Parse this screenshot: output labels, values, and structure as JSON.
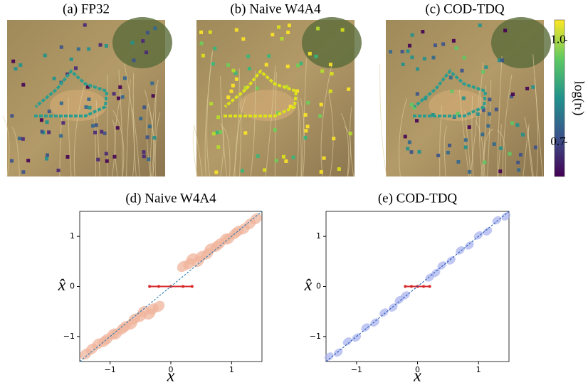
{
  "panels": [
    {
      "title": "(a) FP32"
    },
    {
      "title": "(b) Naive W4A4"
    },
    {
      "title": "(c) COD-TDQ"
    }
  ],
  "colorbar": {
    "label": "log(rₜ)",
    "clim": [
      0.6,
      1.06
    ],
    "cticks": [
      {
        "value": 1.0,
        "label": "1.0"
      },
      0.7
    ]
  },
  "chart_data": [
    {
      "type": "scatter",
      "title": "(d) Naive W4A4",
      "x_label": "x",
      "y_label": "x̂",
      "xlim": [
        -1.5,
        1.5
      ],
      "ylim": [
        -1.5,
        1.5
      ],
      "xticks": [
        {
          "value": -1,
          "label": "−1"
        },
        0,
        1
      ],
      "yticks": [
        {
          "value": -1,
          "label": "−1"
        },
        0,
        1
      ],
      "series": [
        {
          "color": "#f0b49c",
          "x": [
            0.2,
            0.3,
            0.35,
            0.45,
            0.5,
            0.6,
            0.65,
            0.75,
            0.8,
            0.9,
            0.95,
            1.05,
            1.1,
            1.2,
            1.3,
            1.4,
            -0.2,
            -0.3,
            -0.35,
            -0.45,
            -0.5,
            -0.6,
            -0.65,
            -0.75,
            -0.8,
            -0.9,
            -0.95,
            -1.05,
            -1.1,
            -1.2,
            -1.3,
            -1.4
          ],
          "values": [
            0.4,
            0.45,
            0.55,
            0.5,
            0.6,
            0.65,
            0.75,
            0.8,
            0.85,
            0.95,
            0.95,
            1.05,
            1.1,
            1.15,
            1.25,
            1.35,
            -0.4,
            -0.45,
            -0.55,
            -0.5,
            -0.6,
            -0.65,
            -0.75,
            -0.8,
            -0.85,
            -0.95,
            -0.95,
            -1.05,
            -1.1,
            -1.15,
            -1.25,
            -1.35
          ]
        },
        {
          "color": "#d62728",
          "x": [
            -0.35,
            -0.2,
            0,
            0.2,
            0.35
          ],
          "values": [
            0,
            0,
            0,
            0,
            0
          ]
        },
        {
          "color": "#1f77b4",
          "mode": "line",
          "x": [
            -1.5,
            1.5
          ],
          "values": [
            -1.5,
            1.5
          ]
        }
      ]
    },
    {
      "type": "scatter",
      "title": "(e) COD-TDQ",
      "x_label": "x",
      "y_label": "x̂",
      "xlim": [
        -1.5,
        1.5
      ],
      "ylim": [
        -1.5,
        1.5
      ],
      "xticks": [
        {
          "value": -1,
          "label": "−1"
        },
        0,
        1
      ],
      "yticks": [
        {
          "value": -1,
          "label": "−1"
        },
        0,
        1
      ],
      "series": [
        {
          "color": "#a9b4ee",
          "x": [
            -1.45,
            -1.3,
            -1.15,
            -1.0,
            -0.85,
            -0.7,
            -0.55,
            -0.4,
            -0.3,
            -0.2,
            0.2,
            0.3,
            0.4,
            0.55,
            0.7,
            0.85,
            1.0,
            1.15,
            1.3,
            1.45
          ],
          "values": [
            -1.4,
            -1.32,
            -1.1,
            -1.02,
            -0.82,
            -0.72,
            -0.52,
            -0.42,
            -0.27,
            -0.18,
            0.18,
            0.27,
            0.42,
            0.52,
            0.72,
            0.82,
            1.02,
            1.1,
            1.32,
            1.4
          ]
        },
        {
          "color": "#d62728",
          "x": [
            -0.2,
            -0.1,
            0,
            0.1,
            0.2
          ],
          "values": [
            0,
            0,
            0,
            0,
            0
          ]
        },
        {
          "color": "#1f4fb4",
          "mode": "line",
          "x": [
            -1.5,
            1.5
          ],
          "values": [
            -1.5,
            1.5
          ]
        }
      ]
    }
  ]
}
